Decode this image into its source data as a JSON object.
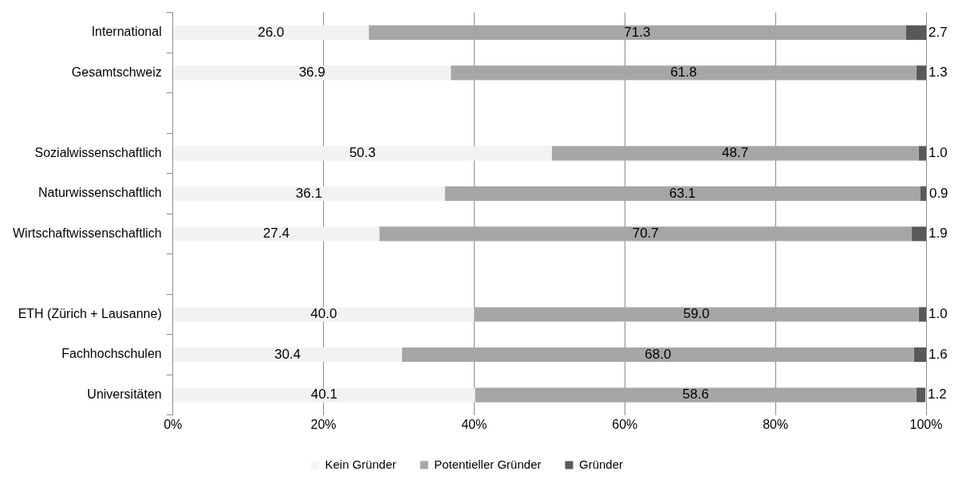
{
  "chart_data": {
    "type": "bar",
    "orientation": "horizontal",
    "stacked": true,
    "categories": [
      "International",
      "Gesamtschweiz",
      null,
      "Sozialwissenschaftlich",
      "Naturwissenschaftlich",
      "Wirtschaftwissenschaftlich",
      null,
      "ETH (Zürich + Lausanne)",
      "Fachhochschulen",
      "Universitäten"
    ],
    "series": [
      {
        "name": "Kein Gründer",
        "color": "#f2f2f2",
        "values": [
          26.0,
          36.9,
          null,
          50.3,
          36.1,
          27.4,
          null,
          40.0,
          30.4,
          40.1
        ],
        "value_labels": [
          "26.0",
          "36.9",
          null,
          "50.3",
          "36.1",
          "27.4",
          null,
          "40.0",
          "30.4",
          "40.1"
        ]
      },
      {
        "name": "Potentieller Gründer",
        "color": "#a6a6a6",
        "values": [
          71.3,
          61.8,
          null,
          48.7,
          63.1,
          70.7,
          null,
          59.0,
          68.0,
          58.6
        ],
        "value_labels": [
          "71.3",
          "61.8",
          null,
          "48.7",
          "63.1",
          "70.7",
          null,
          "59.0",
          "68.0",
          "58.6"
        ]
      },
      {
        "name": "Gründer",
        "color": "#595959",
        "values": [
          2.7,
          1.3,
          null,
          1.0,
          0.9,
          1.9,
          null,
          1.0,
          1.6,
          1.2
        ],
        "value_labels": [
          "2.7",
          "1.3",
          null,
          "1.0",
          "0.9",
          "1.9",
          null,
          "1.0",
          "1.6",
          "1.2"
        ]
      }
    ],
    "xlim": [
      0,
      100
    ],
    "xticks": [
      {
        "value": 0,
        "label": "0%"
      },
      {
        "value": 20,
        "label": "20%"
      },
      {
        "value": 40,
        "label": "40%"
      },
      {
        "value": 60,
        "label": "60%"
      },
      {
        "value": 80,
        "label": "80%"
      },
      {
        "value": 100,
        "label": "100%"
      }
    ],
    "grid": "x",
    "legend": "bottom"
  }
}
